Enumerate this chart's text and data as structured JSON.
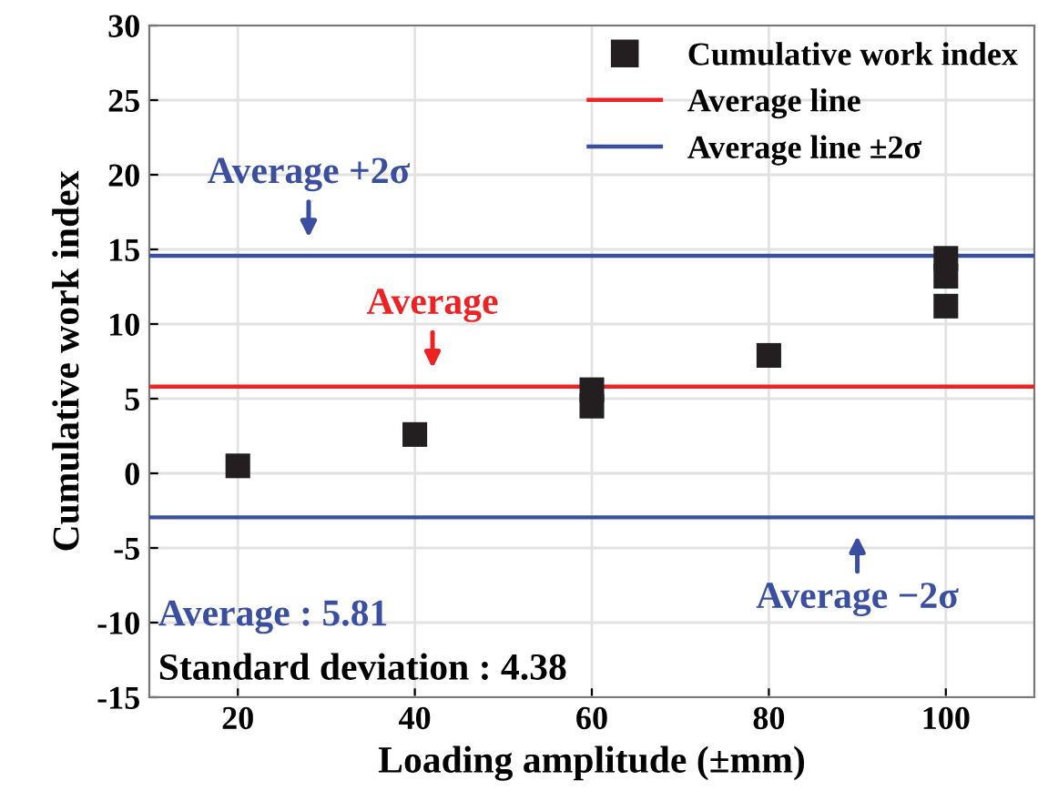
{
  "chart_data": {
    "type": "scatter",
    "xlabel": "Loading amplitude (±mm)",
    "ylabel": "Cumulative work index",
    "series": [
      {
        "name": "Cumulative work index",
        "color": "#231f20",
        "x": [
          20,
          40,
          60,
          60,
          80,
          100,
          100,
          100
        ],
        "values": [
          0.5,
          2.6,
          5.6,
          4.5,
          7.9,
          14.4,
          13.2,
          11.2
        ]
      }
    ],
    "xlim": [
      10,
      110
    ],
    "xticks": [
      20,
      40,
      60,
      80,
      100
    ],
    "ylim": [
      -15,
      30
    ],
    "yticks": [
      -15,
      -10,
      -5,
      0,
      5,
      10,
      15,
      20,
      25,
      30
    ],
    "ref_lines": [
      {
        "axis": "y",
        "value": 5.81,
        "label": "Average line",
        "color": "#ee2222"
      },
      {
        "axis": "y",
        "value": 14.57,
        "label": "Average line ±2σ",
        "color": "#3a4fa0"
      },
      {
        "axis": "y",
        "value": -2.95,
        "label": null,
        "color": "#3a4fa0"
      }
    ],
    "annotations": [
      {
        "text": "Average +2σ",
        "x": 28,
        "y": 14.57
      },
      {
        "text": "Average",
        "x": 42,
        "y": 5.81
      },
      {
        "text": "Average −2σ",
        "x": 90,
        "y": -2.95
      },
      "Average : 5.81",
      "Standard deviation : 4.38"
    ],
    "grid": true,
    "legend": "top right",
    "marker": "square"
  }
}
